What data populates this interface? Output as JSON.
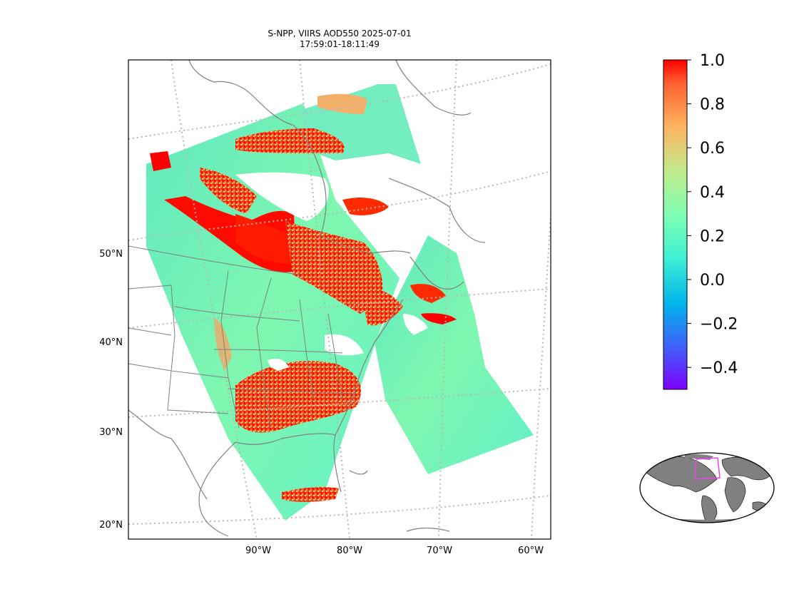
{
  "title": {
    "line1": "S-NPP, VIIRS AOD550 2025-07-01",
    "line2": "17:59:01-18:11:49"
  },
  "map": {
    "lat_labels": [
      "50°N",
      "40°N",
      "30°N",
      "20°N"
    ],
    "lon_labels": [
      "90°W",
      "80°W",
      "70°W",
      "60°W"
    ]
  },
  "colorbar": {
    "colormap": "rainbow",
    "min": -0.5,
    "max": 1.0,
    "tick_labels": [
      "1.0",
      "0.8",
      "0.6",
      "0.4",
      "0.2",
      "0.0",
      "−0.2",
      "−0.4"
    ]
  },
  "inset": {
    "description_name": "global-locator-map",
    "highlight_color": "#ee44ee",
    "land_color": "#808080"
  }
}
